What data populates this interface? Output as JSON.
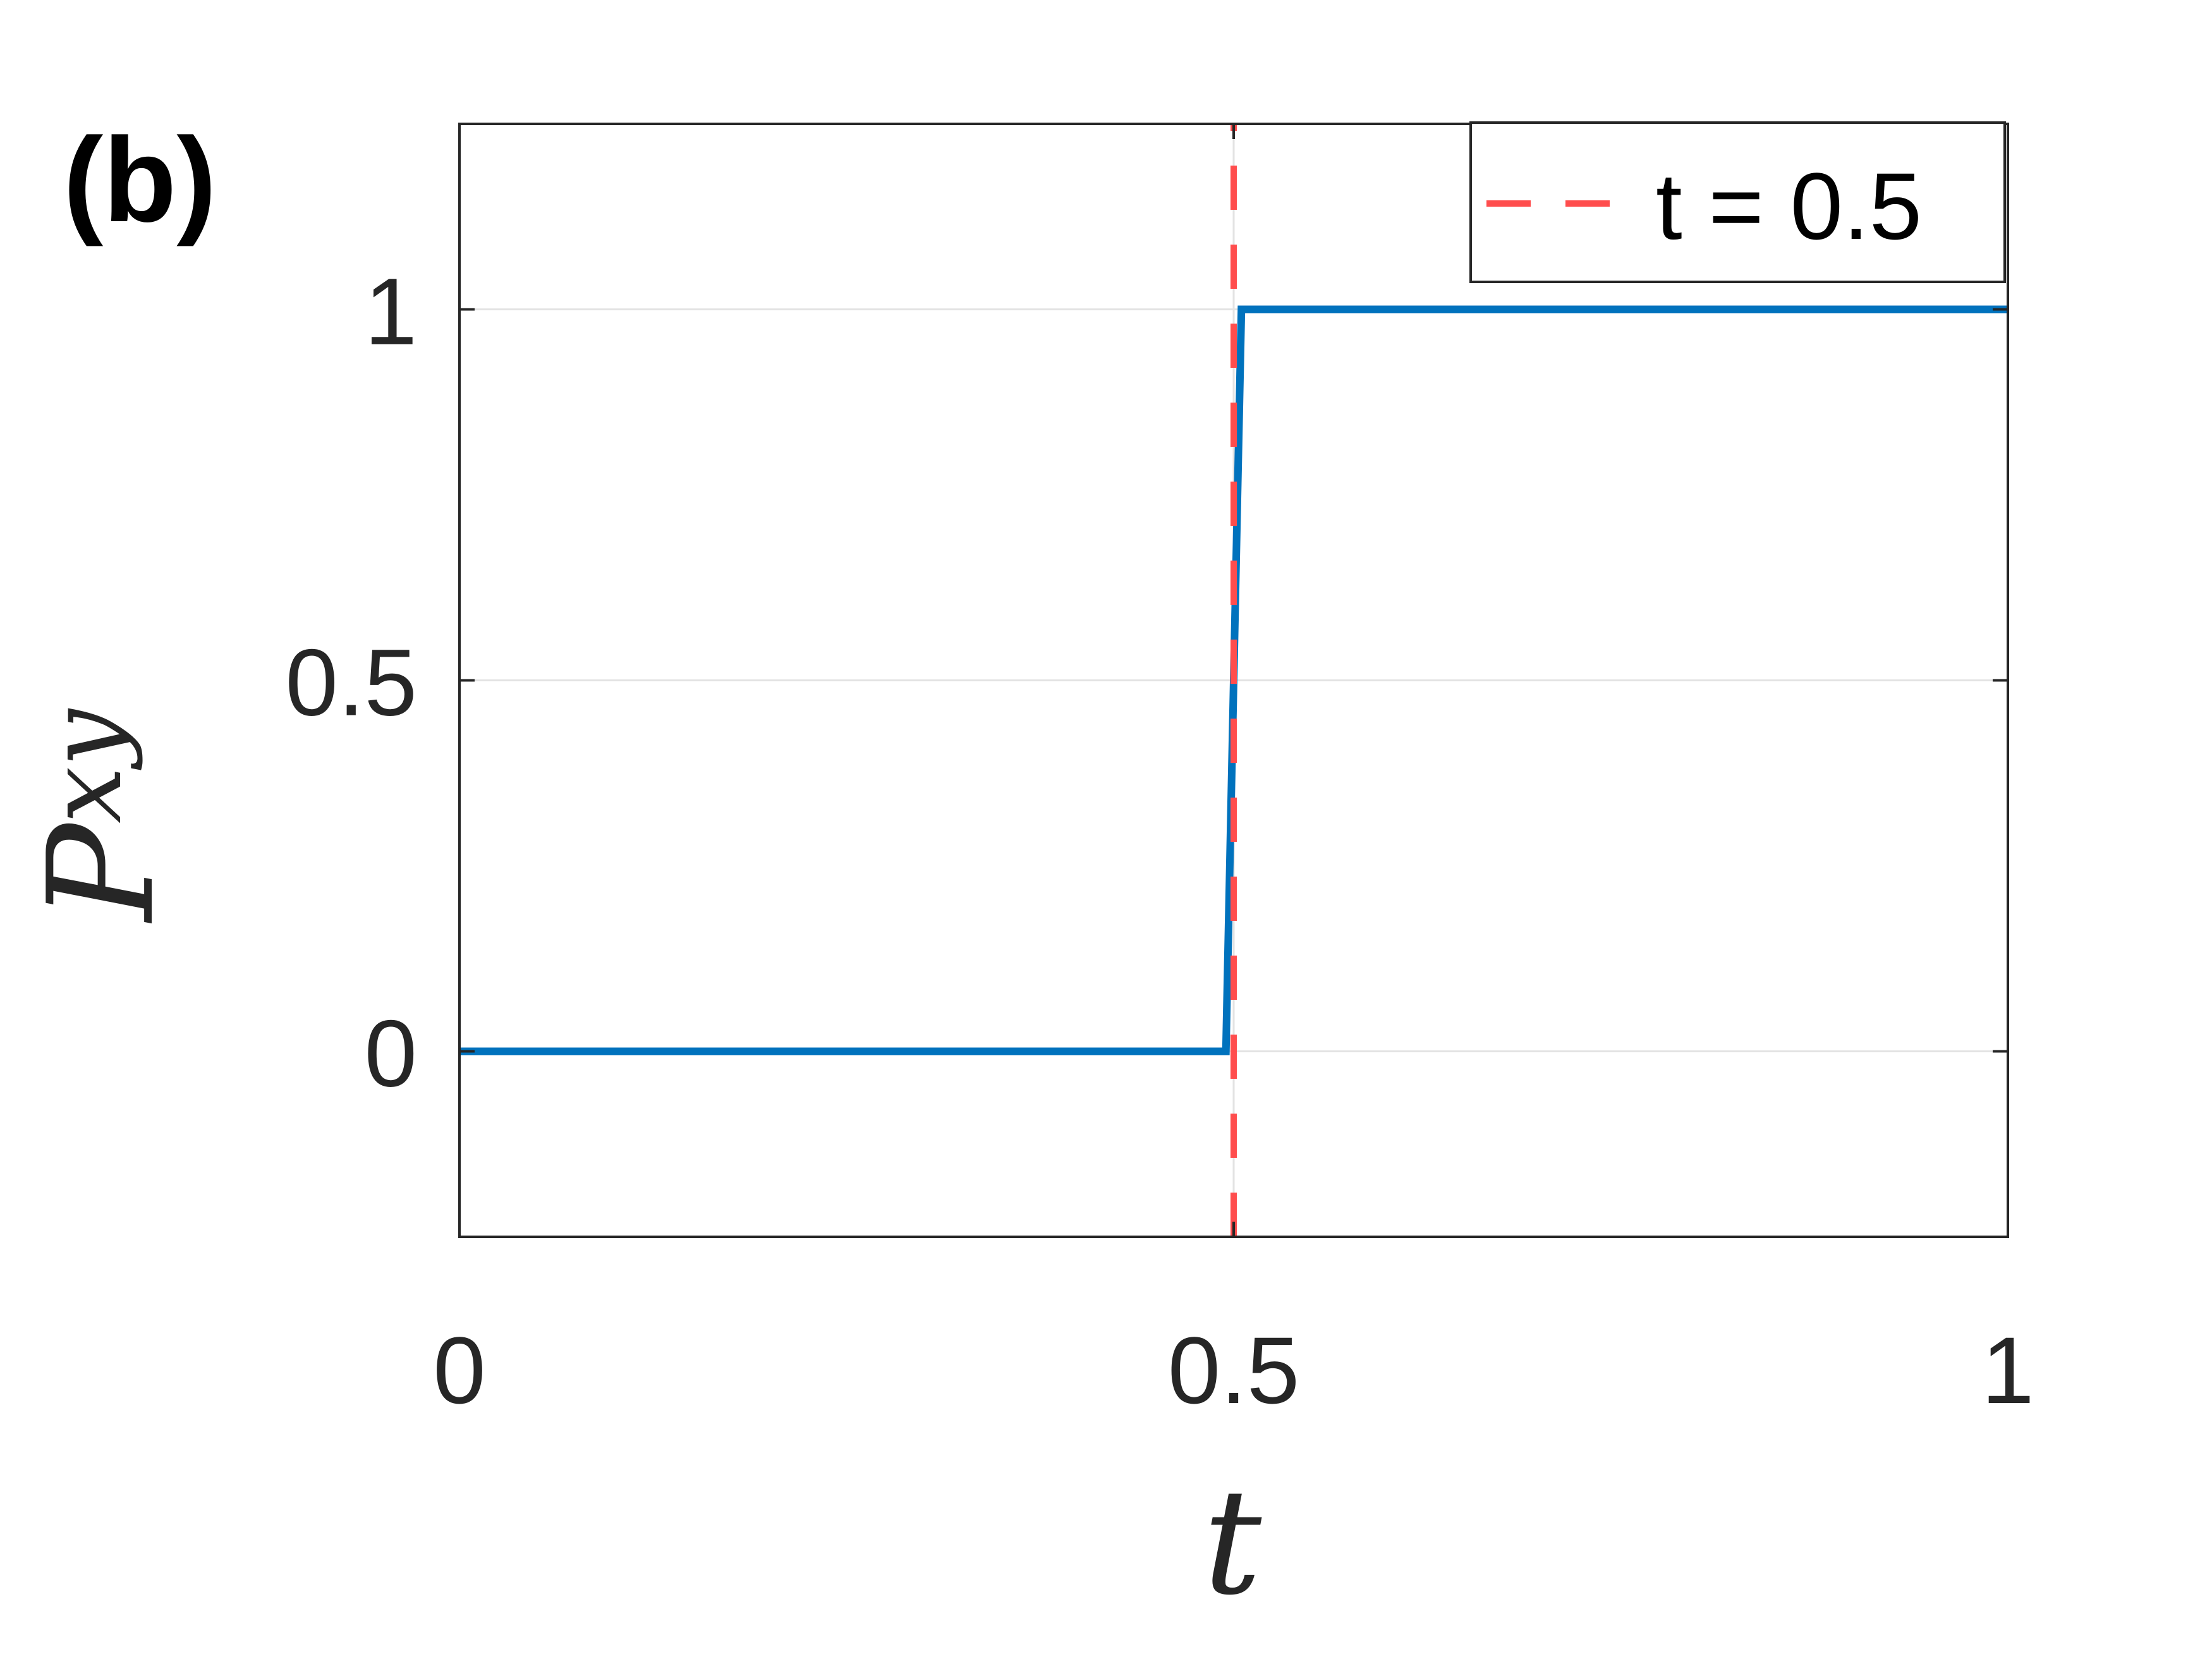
{
  "panel_label": "(b)",
  "chart_data": {
    "type": "line",
    "xlabel": "t",
    "ylabel": {
      "main": "P",
      "subscript": "xy"
    },
    "xlim": [
      0,
      1
    ],
    "ylim": [
      -0.25,
      1.25
    ],
    "xticks": [
      0,
      0.5,
      1
    ],
    "xtick_labels": [
      "0",
      "0.5",
      "1"
    ],
    "yticks": [
      0,
      0.5,
      1
    ],
    "ytick_labels": [
      "0",
      "0.5",
      "1"
    ],
    "grid": true,
    "legend": {
      "position": "top-right"
    },
    "series": [
      {
        "style": "solid",
        "color": "#0072BD",
        "x": [
          0,
          0.495,
          0.505,
          1
        ],
        "y": [
          0,
          0,
          1,
          1
        ]
      },
      {
        "name": "t = 0.5",
        "style": "dashed",
        "color": "#FF4D4D",
        "x": [
          0.5,
          0.5
        ],
        "y": [
          -0.25,
          1.25
        ]
      }
    ]
  }
}
